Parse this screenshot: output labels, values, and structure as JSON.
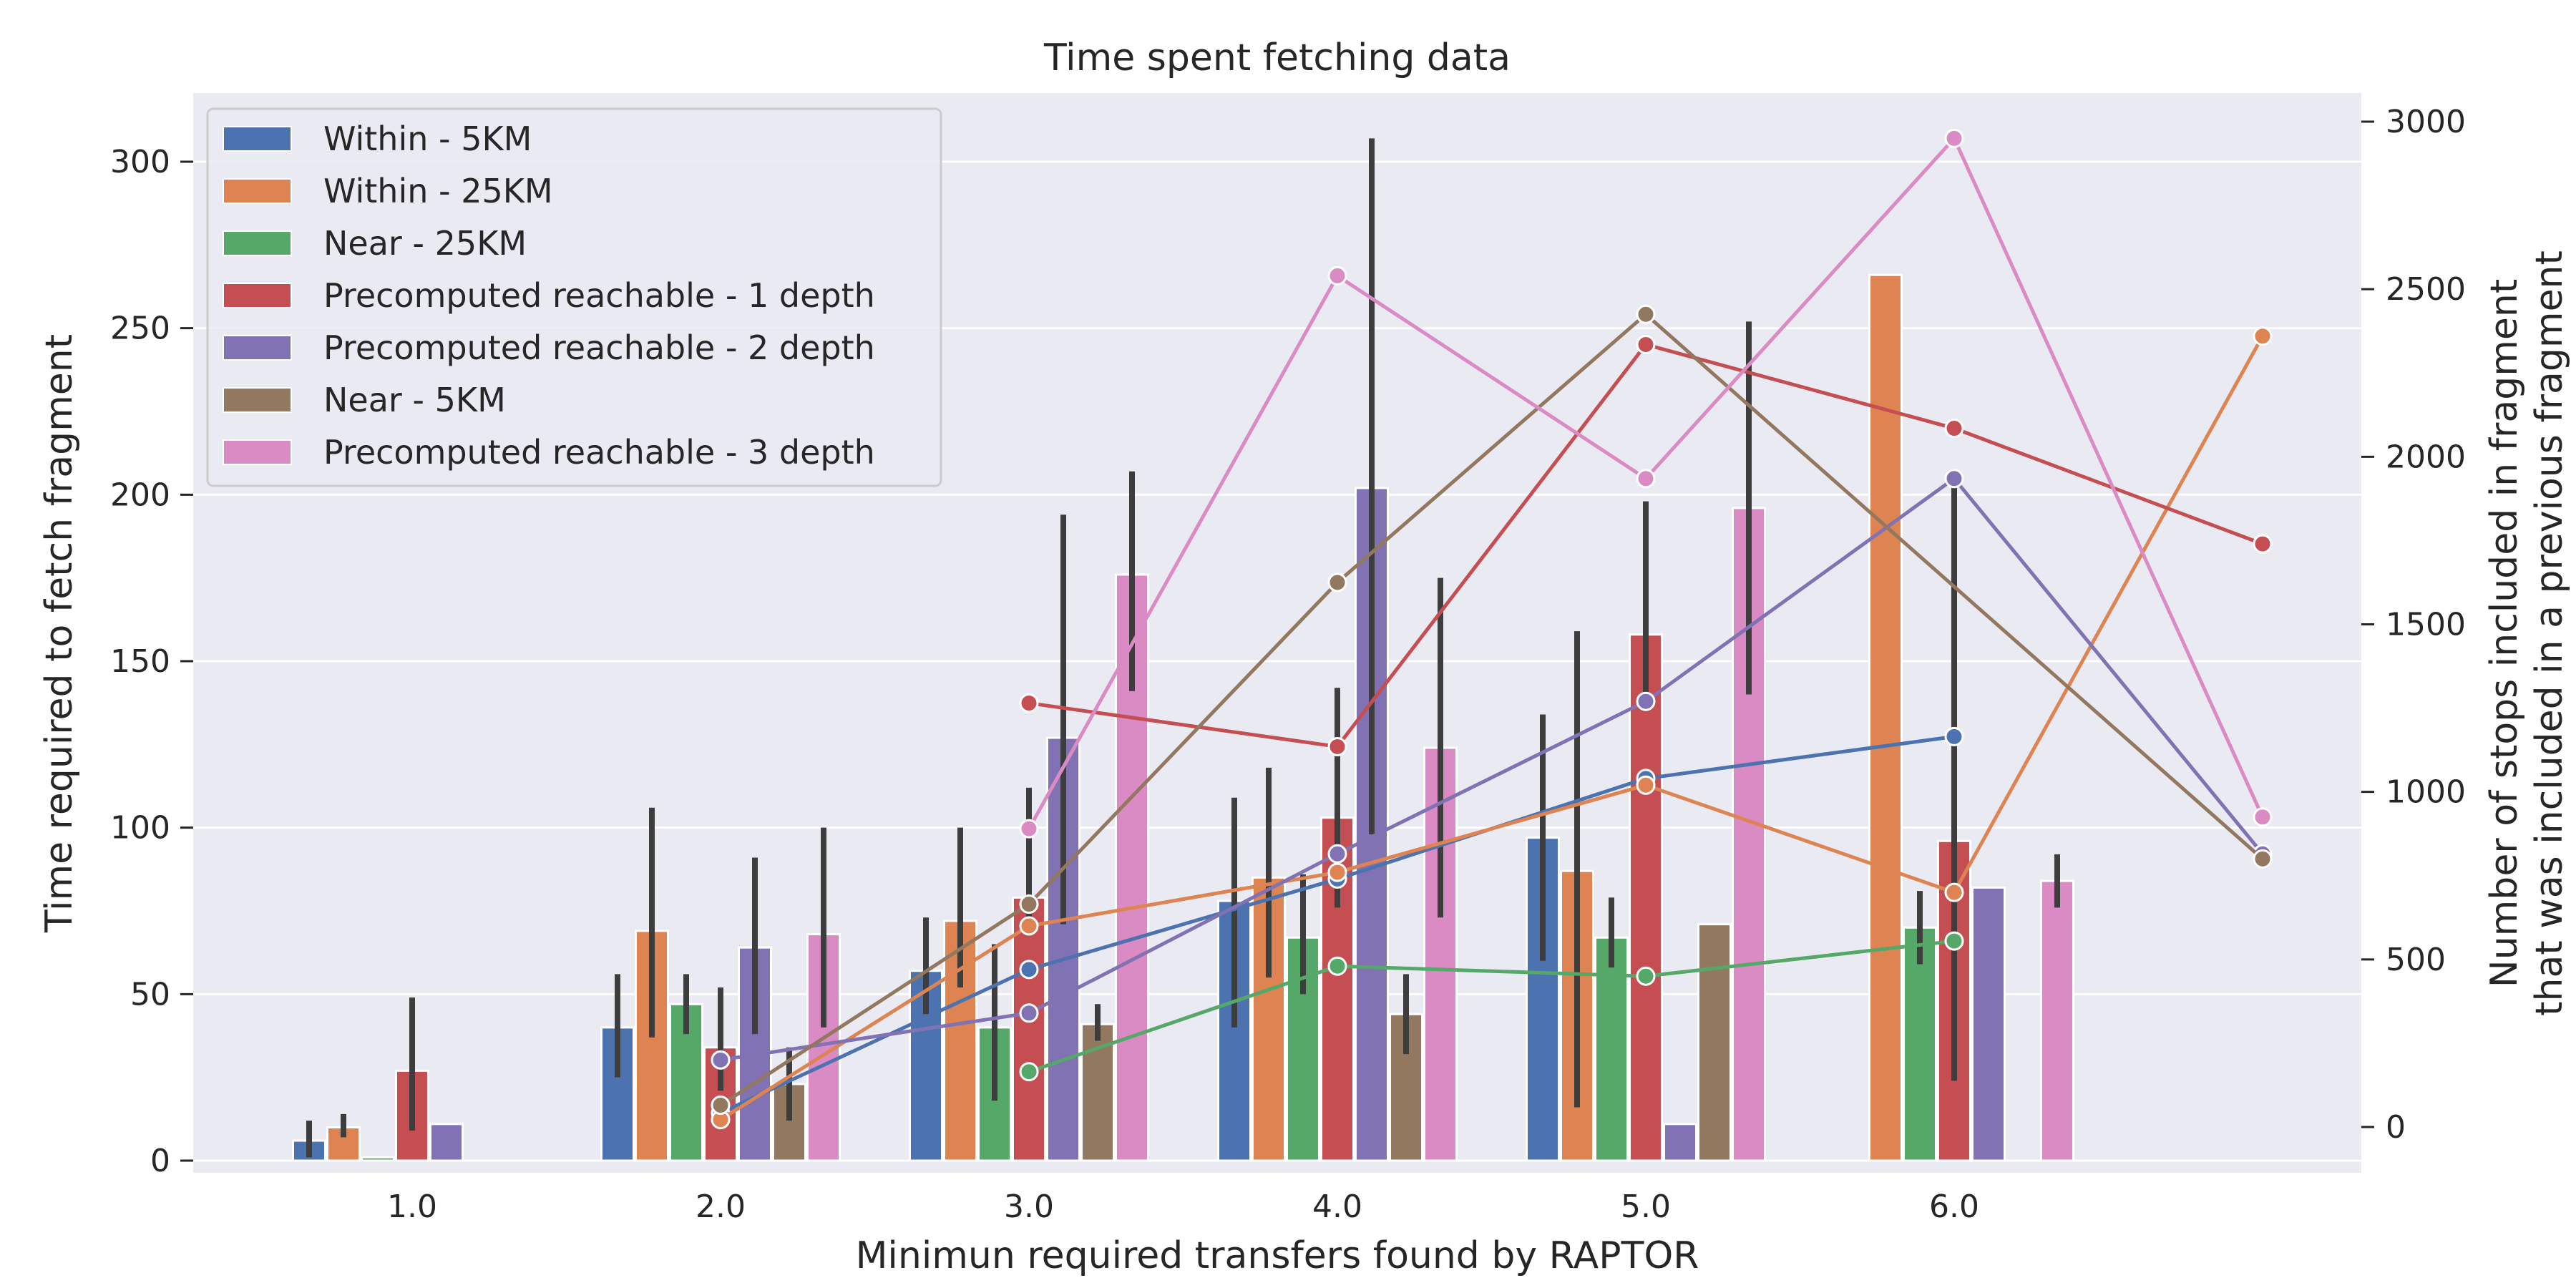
{
  "chart_data": {
    "type": "bar",
    "title": "Time spent fetching data",
    "xlabel": "Minimun required transfers found by RAPTOR",
    "ylabel": "Time required to fetch fragment",
    "y2label_line1": "Number of stops included in fragment",
    "y2label_line2": "that was included in a previous fragment",
    "categories": [
      "1.0",
      "2.0",
      "3.0",
      "4.0",
      "5.0",
      "6.0"
    ],
    "ylim": [
      0,
      320
    ],
    "yticks": [
      0,
      50,
      100,
      150,
      200,
      250,
      300
    ],
    "y2lim": [
      -95,
      3080
    ],
    "y2ticks": [
      0,
      500,
      1000,
      1500,
      2000,
      2500,
      3000
    ],
    "grid": true,
    "legend_position": "top-left",
    "bar_series": [
      {
        "name": "Within - 5KM",
        "color": "#4c72b0",
        "values": [
          6,
          40,
          57,
          78,
          97,
          null
        ],
        "ci": [
          [
            1,
            12
          ],
          [
            25,
            56
          ],
          [
            44,
            73
          ],
          [
            40,
            109
          ],
          [
            60,
            134
          ],
          null
        ]
      },
      {
        "name": "Within - 25KM",
        "color": "#dd8452",
        "values": [
          10,
          69,
          72,
          85,
          87,
          266
        ],
        "ci": [
          [
            7,
            14
          ],
          [
            37,
            106
          ],
          [
            52,
            100
          ],
          [
            55,
            118
          ],
          [
            16,
            159
          ],
          null
        ]
      },
      {
        "name": "Near - 25KM",
        "color": "#55a868",
        "values": [
          1,
          47,
          40,
          67,
          67,
          70
        ],
        "ci": [
          null,
          [
            38,
            56
          ],
          [
            18,
            65
          ],
          [
            50,
            86
          ],
          [
            58,
            79
          ],
          [
            59,
            81
          ]
        ]
      },
      {
        "name": "Precomputed reachable - 1 depth",
        "color": "#c44e52",
        "values": [
          27,
          34,
          79,
          103,
          158,
          96
        ],
        "ci": [
          [
            9,
            49
          ],
          [
            21,
            52
          ],
          [
            68,
            112
          ],
          [
            76,
            142
          ],
          [
            138,
            198
          ],
          [
            24,
            204
          ]
        ]
      },
      {
        "name": "Precomputed reachable - 2 depth",
        "color": "#8172b3",
        "values": [
          11,
          64,
          127,
          202,
          11,
          82
        ],
        "ci": [
          null,
          [
            38,
            91
          ],
          [
            71,
            194
          ],
          [
            98,
            307
          ],
          null,
          null
        ]
      },
      {
        "name": "Near - 5KM",
        "color": "#937860",
        "values": [
          null,
          23,
          41,
          44,
          71,
          null
        ],
        "ci": [
          null,
          [
            12,
            34
          ],
          [
            36,
            47
          ],
          [
            32,
            56
          ],
          null,
          null
        ]
      },
      {
        "name": "Precomputed reachable - 3 depth",
        "color": "#da8bc3",
        "values": [
          null,
          68,
          176,
          124,
          196,
          84
        ],
        "ci": [
          null,
          [
            40,
            100
          ],
          [
            141,
            207
          ],
          [
            73,
            175
          ],
          [
            140,
            252
          ],
          [
            76,
            92
          ]
        ]
      }
    ],
    "line_x": [
      2.0,
      3.0,
      4.0,
      5.0,
      6.0,
      7.0
    ],
    "line_series": [
      {
        "name": "Within - 5KM",
        "color": "#4c72b0",
        "values": [
          42,
          470,
          740,
          1040,
          1165,
          null
        ]
      },
      {
        "name": "Within - 25KM",
        "color": "#dd8452",
        "values": [
          22,
          600,
          760,
          1020,
          700,
          2360
        ]
      },
      {
        "name": "Near - 25KM",
        "color": "#55a868",
        "values": [
          null,
          165,
          480,
          450,
          555,
          null
        ]
      },
      {
        "name": "Precomputed reachable - 1 depth",
        "color": "#c44e52",
        "values": [
          null,
          1265,
          1135,
          2335,
          2085,
          1740
        ]
      },
      {
        "name": "Precomputed reachable - 2 depth",
        "color": "#8172b3",
        "values": [
          200,
          340,
          815,
          1270,
          1935,
          815
        ]
      },
      {
        "name": "Near - 5KM",
        "color": "#937860",
        "values": [
          65,
          665,
          1625,
          2425,
          null,
          800
        ]
      },
      {
        "name": "Precomputed reachable - 3 depth",
        "color": "#da8bc3",
        "values": [
          null,
          890,
          2540,
          1935,
          2950,
          925
        ]
      }
    ]
  }
}
